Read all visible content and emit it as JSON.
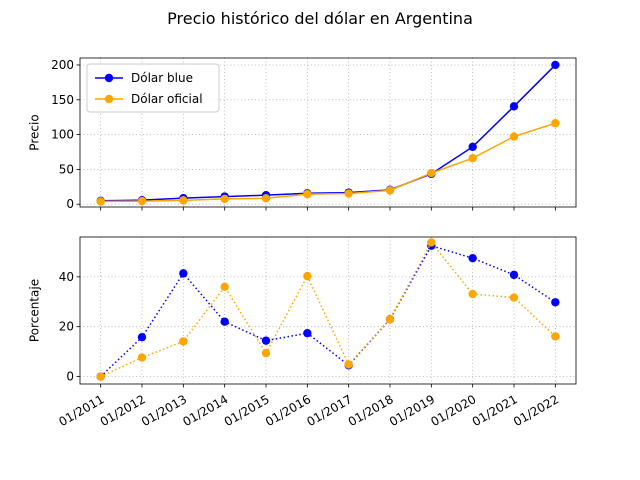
{
  "title": "Precio histórico del dólar en Argentina",
  "colors": {
    "blue": "#0000ff",
    "oficial": "#ffa500"
  },
  "chart_data": [
    {
      "type": "line",
      "ylabel": "Precio",
      "x": [
        "01/2011",
        "01/2012",
        "01/2013",
        "01/2014",
        "01/2015",
        "01/2016",
        "01/2017",
        "01/2018",
        "01/2019",
        "01/2020",
        "01/2021",
        "01/2022"
      ],
      "ylim": [
        -4,
        210
      ],
      "yticks": [
        0,
        50,
        100,
        150,
        200
      ],
      "grid": true,
      "legend": "upper-left",
      "series": [
        {
          "name": "Dólar blue",
          "color": "#0000ff",
          "values": [
            4.9,
            5.8,
            8.7,
            10.9,
            13.0,
            15.7,
            16.6,
            20.6,
            43.6,
            82.4,
            140.6,
            200.0
          ],
          "line": "solid",
          "marker": "circle"
        },
        {
          "name": "Dólar oficial",
          "color": "#ffa500",
          "values": [
            4.0,
            4.5,
            5.5,
            7.6,
            8.5,
            14.5,
            15.3,
            19.9,
            44.8,
            66.1,
            97.2,
            116.4
          ],
          "line": "solid",
          "marker": "circle"
        }
      ]
    },
    {
      "type": "line",
      "ylabel": "Porcentaje",
      "x": [
        "01/2011",
        "01/2012",
        "01/2013",
        "01/2014",
        "01/2015",
        "01/2016",
        "01/2017",
        "01/2018",
        "01/2019",
        "01/2020",
        "01/2021",
        "01/2022"
      ],
      "ylim": [
        -3,
        56
      ],
      "yticks": [
        0,
        20,
        40
      ],
      "grid": true,
      "series": [
        {
          "name": "",
          "color": "#0000ff",
          "values": [
            0,
            15.8,
            41.4,
            22.0,
            14.4,
            17.4,
            4.5,
            23.0,
            52.5,
            47.5,
            40.8,
            29.8
          ],
          "line": "dotted",
          "marker": "circle"
        },
        {
          "name": "",
          "color": "#ffa500",
          "values": [
            0,
            7.6,
            14.1,
            36.0,
            9.4,
            40.3,
            4.8,
            23.0,
            53.8,
            33.1,
            31.7,
            16.1
          ],
          "line": "dotted",
          "marker": "circle"
        }
      ]
    }
  ]
}
